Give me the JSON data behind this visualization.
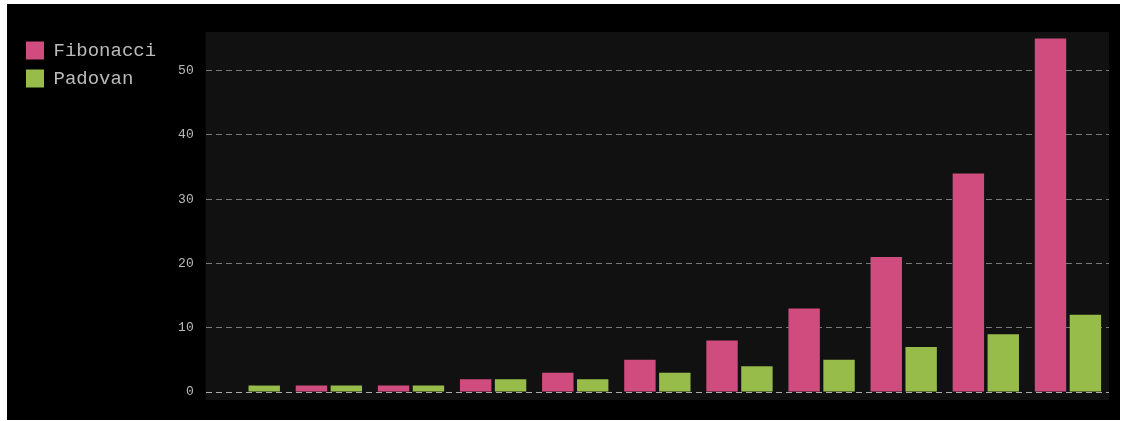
{
  "chart_data": {
    "type": "bar",
    "categories": [
      null,
      null,
      null,
      null,
      null,
      null,
      null,
      null,
      null,
      null,
      null
    ],
    "series": [
      {
        "name": "Fibonacci",
        "color": "#d04c7f",
        "values": [
          0,
          1,
          1,
          2,
          3,
          5,
          8,
          13,
          21,
          34,
          55
        ]
      },
      {
        "name": "Padovan",
        "color": "#97bc4a",
        "values": [
          1,
          1,
          1,
          2,
          2,
          3,
          4,
          5,
          7,
          9,
          12
        ]
      }
    ],
    "ylim": [
      0,
      56
    ],
    "yticks": [
      0,
      10,
      20,
      30,
      40,
      50
    ],
    "grid": "y",
    "legend": "top left",
    "tick_labels": "y"
  }
}
